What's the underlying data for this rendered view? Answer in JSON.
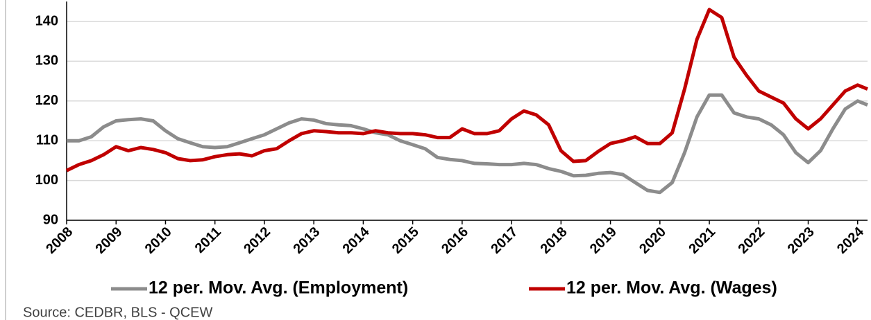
{
  "chart_data": {
    "type": "line",
    "x": [
      2008,
      2008.25,
      2008.5,
      2008.75,
      2009,
      2009.25,
      2009.5,
      2009.75,
      2010,
      2010.25,
      2010.5,
      2010.75,
      2011,
      2011.25,
      2011.5,
      2011.75,
      2012,
      2012.25,
      2012.5,
      2012.75,
      2013,
      2013.25,
      2013.5,
      2013.75,
      2014,
      2014.25,
      2014.5,
      2014.75,
      2015,
      2015.25,
      2015.5,
      2015.75,
      2016,
      2016.25,
      2016.5,
      2016.75,
      2017,
      2017.25,
      2017.5,
      2017.75,
      2018,
      2018.25,
      2018.5,
      2018.75,
      2019,
      2019.25,
      2019.5,
      2019.75,
      2020,
      2020.25,
      2020.5,
      2020.75,
      2021,
      2021.25,
      2021.5,
      2021.75,
      2022,
      2022.25,
      2022.5,
      2022.75,
      2023,
      2023.25,
      2023.5,
      2023.75,
      2024,
      2024.2
    ],
    "series": [
      {
        "name": "12 per. Mov. Avg. (Employment)",
        "color": "#8c8c8c",
        "values": [
          110,
          110,
          111,
          113.5,
          115,
          115.3,
          115.5,
          115,
          112.5,
          110.5,
          109.5,
          108.5,
          108.3,
          108.5,
          109.5,
          110.5,
          111.5,
          113,
          114.5,
          115.5,
          115.2,
          114.3,
          114,
          113.8,
          113,
          112,
          111.5,
          110,
          109,
          108,
          105.8,
          105.3,
          105,
          104.3,
          104.2,
          104,
          104,
          104.3,
          104,
          103,
          102.3,
          101.2,
          101.3,
          101.8,
          102,
          101.5,
          99.5,
          97.5,
          97,
          99.5,
          107,
          116,
          121.5,
          121.5,
          117,
          116,
          115.5,
          114,
          111.5,
          107,
          104.5,
          107.5,
          113,
          118,
          120,
          119
        ]
      },
      {
        "name": "12 per. Mov. Avg. (Wages)",
        "color": "#c00000",
        "values": [
          102.5,
          104,
          105,
          106.5,
          108.5,
          107.5,
          108.3,
          107.8,
          107,
          105.5,
          105,
          105.2,
          106,
          106.5,
          106.7,
          106.2,
          107.5,
          108,
          110,
          111.8,
          112.5,
          112.3,
          112,
          112,
          111.8,
          112.5,
          112,
          111.8,
          111.8,
          111.5,
          110.8,
          110.8,
          113,
          111.8,
          111.8,
          112.5,
          115.5,
          117.5,
          116.5,
          114,
          107.5,
          104.8,
          105,
          107.3,
          109.3,
          110,
          111,
          109.3,
          109.3,
          112,
          123,
          135.5,
          143,
          141,
          131,
          126.5,
          122.5,
          121,
          119.5,
          115.5,
          113,
          115.5,
          119,
          122.5,
          124,
          123
        ]
      }
    ],
    "xlim": [
      2008,
      2024.2
    ],
    "xticks": [
      2008,
      2009,
      2010,
      2011,
      2012,
      2013,
      2014,
      2015,
      2016,
      2017,
      2018,
      2019,
      2020,
      2021,
      2022,
      2023,
      2024
    ],
    "ylim": [
      90,
      145
    ],
    "yticks": [
      90,
      100,
      110,
      120,
      130,
      140
    ],
    "grid": true,
    "source": "Source: CEDBR, BLS - QCEW"
  }
}
